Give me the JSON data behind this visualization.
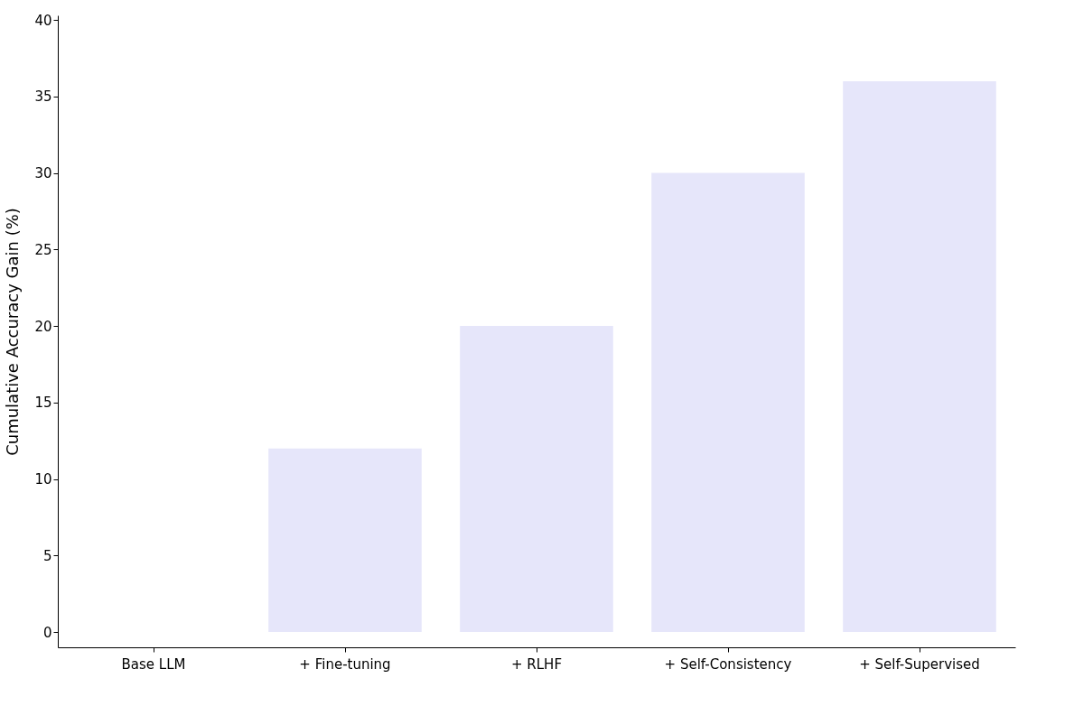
{
  "chart_data": {
    "type": "bar",
    "ylabel": "Cumulative Accuracy Gain (%)",
    "categories": [
      "Base LLM",
      "+ Fine-tuning",
      "+ RLHF",
      "+ Self-Consistency",
      "+ Self-Supervised"
    ],
    "values": [
      0,
      12,
      20,
      30,
      36
    ],
    "color": "#e6e6fa",
    "ylim": [
      -1,
      40.3
    ],
    "yticks": [
      0,
      5,
      10,
      15,
      20,
      25,
      30,
      35,
      40
    ],
    "grid": false
  }
}
